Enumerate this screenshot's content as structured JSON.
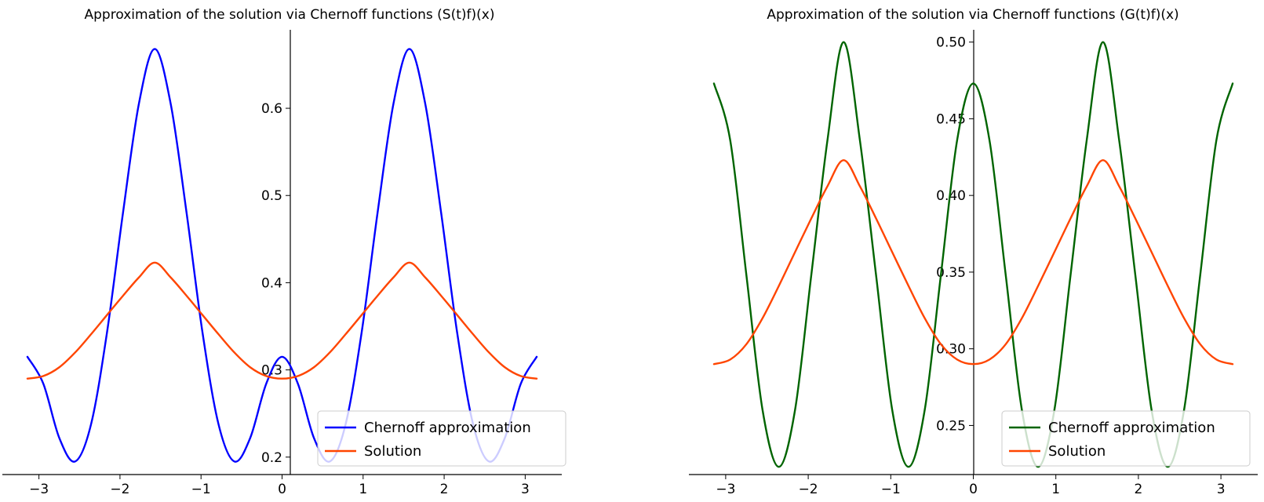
{
  "chart_data": [
    {
      "type": "line",
      "title": "Approximation of the solution via Chernoff functions (S(t)f)(x)",
      "xlabel": "",
      "ylabel": "",
      "xlim": [
        -3.14159,
        3.14159
      ],
      "ylim": [
        0.18,
        0.69
      ],
      "x_ticks": [
        -3,
        -2,
        -1,
        0,
        1,
        2,
        3
      ],
      "x_tick_labels": [
        "−3",
        "−2",
        "−1",
        "0",
        "1",
        "2",
        "3"
      ],
      "y_ticks": [
        0.2,
        0.3,
        0.4,
        0.5,
        0.6
      ],
      "y_tick_labels": [
        "0.2",
        "0.3",
        "0.4",
        "0.5",
        "0.6"
      ],
      "legend": {
        "position": "lower-right"
      },
      "grid": false,
      "series": [
        {
          "name": "Chernoff approximation",
          "color": "#0000ff",
          "x": [
            -3.142,
            -2.945,
            -2.749,
            -2.553,
            -2.356,
            -2.16,
            -1.963,
            -1.767,
            -1.571,
            -1.374,
            -1.178,
            -0.982,
            -0.785,
            -0.589,
            -0.393,
            -0.196,
            0.0,
            0.196,
            0.393,
            0.589,
            0.785,
            0.982,
            1.178,
            1.374,
            1.571,
            1.767,
            1.963,
            2.16,
            2.356,
            2.553,
            2.749,
            2.945,
            3.142
          ],
          "y": [
            0.315,
            0.284,
            0.222,
            0.195,
            0.238,
            0.343,
            0.48,
            0.605,
            0.668,
            0.605,
            0.48,
            0.343,
            0.238,
            0.195,
            0.222,
            0.284,
            0.315,
            0.284,
            0.222,
            0.195,
            0.238,
            0.343,
            0.48,
            0.605,
            0.668,
            0.605,
            0.48,
            0.343,
            0.238,
            0.195,
            0.222,
            0.284,
            0.315
          ]
        },
        {
          "name": "Solution",
          "color": "#ff4500",
          "x": [
            -3.142,
            -2.945,
            -2.749,
            -2.553,
            -2.356,
            -2.16,
            -1.963,
            -1.767,
            -1.571,
            -1.374,
            -1.178,
            -0.982,
            -0.785,
            -0.589,
            -0.393,
            -0.196,
            0.0,
            0.196,
            0.393,
            0.589,
            0.785,
            0.982,
            1.178,
            1.374,
            1.571,
            1.767,
            1.963,
            2.16,
            2.356,
            2.553,
            2.749,
            2.945,
            3.142
          ],
          "y": [
            0.29,
            0.293,
            0.303,
            0.32,
            0.341,
            0.363,
            0.385,
            0.406,
            0.423,
            0.406,
            0.385,
            0.363,
            0.341,
            0.32,
            0.303,
            0.293,
            0.29,
            0.293,
            0.303,
            0.32,
            0.341,
            0.363,
            0.385,
            0.406,
            0.423,
            0.406,
            0.385,
            0.363,
            0.341,
            0.32,
            0.303,
            0.293,
            0.29
          ]
        }
      ]
    },
    {
      "type": "line",
      "title": "Approximation of the solution via Chernoff functions (G(t)f)(x)",
      "xlabel": "",
      "ylabel": "",
      "xlim": [
        -3.14159,
        3.14159
      ],
      "ylim": [
        0.218,
        0.508
      ],
      "x_ticks": [
        -3,
        -2,
        -1,
        0,
        1,
        2,
        3
      ],
      "x_tick_labels": [
        "−3",
        "−2",
        "−1",
        "0",
        "1",
        "2",
        "3"
      ],
      "y_ticks": [
        0.25,
        0.3,
        0.35,
        0.4,
        0.45,
        0.5
      ],
      "y_tick_labels": [
        "0.25",
        "0.30",
        "0.35",
        "0.40",
        "0.45",
        "0.50"
      ],
      "legend": {
        "position": "lower-right"
      },
      "grid": false,
      "series": [
        {
          "name": "Chernoff approximation",
          "color": "#006400",
          "x": [
            -3.142,
            -2.945,
            -2.749,
            -2.553,
            -2.356,
            -2.16,
            -1.963,
            -1.767,
            -1.571,
            -1.374,
            -1.178,
            -0.982,
            -0.785,
            -0.589,
            -0.393,
            -0.196,
            0.0,
            0.196,
            0.393,
            0.589,
            0.785,
            0.982,
            1.178,
            1.374,
            1.571,
            1.767,
            1.963,
            2.16,
            2.356,
            2.553,
            2.749,
            2.945,
            3.142
          ],
          "y": [
            0.473,
            0.436,
            0.348,
            0.26,
            0.223,
            0.26,
            0.348,
            0.436,
            0.5,
            0.436,
            0.348,
            0.26,
            0.223,
            0.26,
            0.348,
            0.436,
            0.473,
            0.436,
            0.348,
            0.26,
            0.223,
            0.26,
            0.348,
            0.436,
            0.5,
            0.436,
            0.348,
            0.26,
            0.223,
            0.26,
            0.348,
            0.436,
            0.473
          ]
        },
        {
          "name": "Solution",
          "color": "#ff4500",
          "x": [
            -3.142,
            -2.945,
            -2.749,
            -2.553,
            -2.356,
            -2.16,
            -1.963,
            -1.767,
            -1.571,
            -1.374,
            -1.178,
            -0.982,
            -0.785,
            -0.589,
            -0.393,
            -0.196,
            0.0,
            0.196,
            0.393,
            0.589,
            0.785,
            0.982,
            1.178,
            1.374,
            1.571,
            1.767,
            1.963,
            2.16,
            2.356,
            2.553,
            2.749,
            2.945,
            3.142
          ],
          "y": [
            0.29,
            0.293,
            0.303,
            0.32,
            0.341,
            0.363,
            0.385,
            0.406,
            0.423,
            0.406,
            0.385,
            0.363,
            0.341,
            0.32,
            0.303,
            0.293,
            0.29,
            0.293,
            0.303,
            0.32,
            0.341,
            0.363,
            0.385,
            0.406,
            0.423,
            0.406,
            0.385,
            0.363,
            0.341,
            0.32,
            0.303,
            0.293,
            0.29
          ]
        }
      ]
    }
  ]
}
